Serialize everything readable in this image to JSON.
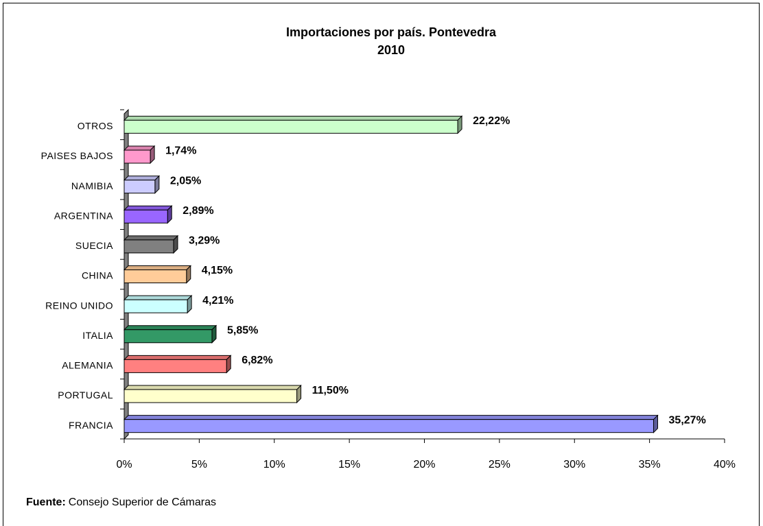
{
  "chart_data": {
    "type": "bar",
    "orientation": "horizontal",
    "title": "Importaciones por país. Pontevedra",
    "subtitle": "2010",
    "categories": [
      "FRANCIA",
      "PORTUGAL",
      "ALEMANIA",
      "ITALIA",
      "REINO UNIDO",
      "CHINA",
      "SUECIA",
      "ARGENTINA",
      "NAMIBIA",
      "PAISES BAJOS",
      "OTROS"
    ],
    "values": [
      35.27,
      11.5,
      6.82,
      5.85,
      4.21,
      4.15,
      3.29,
      2.89,
      2.05,
      1.74,
      22.22
    ],
    "value_labels": [
      "35,27%",
      "11,50%",
      "6,82%",
      "5,85%",
      "4,21%",
      "4,15%",
      "3,29%",
      "2,89%",
      "2,05%",
      "1,74%",
      "22,22%"
    ],
    "colors": [
      "#9999ff",
      "#ffffcc",
      "#ff8080",
      "#339966",
      "#ccffff",
      "#ffcc99",
      "#808080",
      "#9966ff",
      "#ccccff",
      "#ff99cc",
      "#ccffcc"
    ],
    "xlim": [
      0,
      40
    ],
    "xticks": [
      {
        "value": 0,
        "label": "0%"
      },
      {
        "value": 5,
        "label": "5%"
      },
      {
        "value": 10,
        "label": "10%"
      },
      {
        "value": 15,
        "label": "15%"
      },
      {
        "value": 20,
        "label": "20%"
      },
      {
        "value": 25,
        "label": "25%"
      },
      {
        "value": 30,
        "label": "30%"
      },
      {
        "value": 35,
        "label": "35%"
      },
      {
        "value": 40,
        "label": "40%"
      }
    ],
    "source_label": "Fuente:",
    "source": "Consejo Superior de Cámaras"
  }
}
